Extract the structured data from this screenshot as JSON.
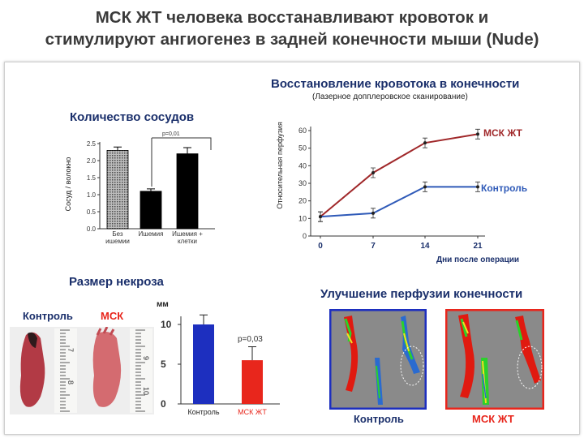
{
  "title": {
    "line1": "МСК ЖТ человека восстанавливают кровоток и",
    "line2": "стимулируют ангиогенез  в задней конечности мыши (Nude)"
  },
  "vessels": {
    "heading": "Количество сосудов",
    "ylabel": "Сосуд / волокно",
    "pvalue": "p=0,01"
  },
  "perfusion_chart": {
    "heading": "Восстановление  кровотока в конечности",
    "subheading": "(Лазерное допплеровское  сканирование)",
    "ylabel": "Относительная перфузия",
    "xlabel": "Дни после операции",
    "msc_label": "МСК ЖТ",
    "control_label": "Контроль"
  },
  "necrosis": {
    "heading": "Размер некроза",
    "photo_control": "Контроль",
    "photo_msc": "МСК",
    "unit": "мм",
    "pvalue": "p=0,03"
  },
  "perfusion_images": {
    "heading": "Улучшение перфузии конечности",
    "control_caption": "Контроль",
    "msc_caption": "МСК ЖТ"
  },
  "colors": {
    "heading": "#1a2f6b",
    "red_curve": "#a0282a",
    "blue_curve": "#2f5ab8",
    "bar_blue": "#1d2fbf",
    "bar_red": "#e8261c"
  },
  "chart_data": [
    {
      "type": "bar",
      "categories": [
        "Без ишемии",
        "Ишемия",
        "Ишемия + клетки"
      ],
      "values": [
        2.3,
        1.1,
        2.2
      ],
      "errors": [
        0.1,
        0.07,
        0.18
      ],
      "yticks": [
        "0.0",
        "0.5",
        "1.0",
        "1.5",
        "2.0",
        "2.5"
      ],
      "ylim": [
        0,
        2.5
      ]
    },
    {
      "type": "line",
      "x": [
        0,
        7,
        14,
        21
      ],
      "xticks": [
        "0",
        "7",
        "14",
        "21"
      ],
      "yticks": [
        "0",
        "10",
        "20",
        "30",
        "40",
        "50",
        "60"
      ],
      "ylim": [
        0,
        60
      ],
      "series": [
        {
          "name": "МСК ЖТ",
          "values": [
            11,
            36,
            53,
            58
          ]
        },
        {
          "name": "Контроль",
          "values": [
            11,
            13,
            28,
            28
          ]
        }
      ]
    },
    {
      "type": "bar",
      "categories": [
        "Контроль",
        "МСК ЖТ"
      ],
      "values": [
        10,
        5.5
      ],
      "errors": [
        1.2,
        1.7
      ],
      "yticks": [
        "0",
        "5",
        "10"
      ],
      "ylim": [
        0,
        10
      ]
    }
  ]
}
